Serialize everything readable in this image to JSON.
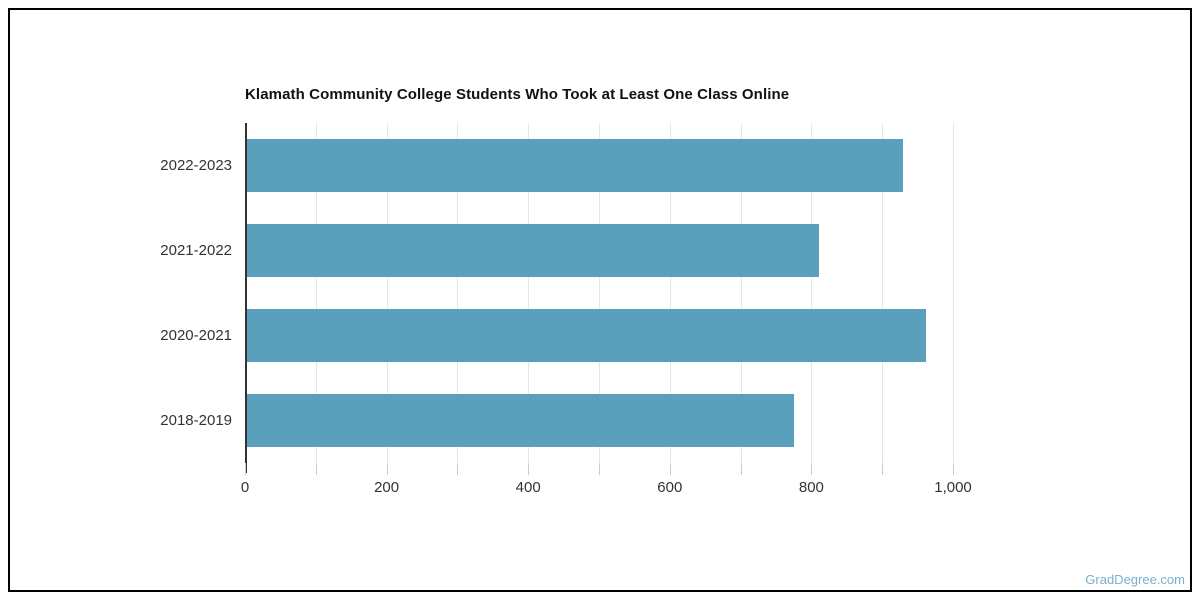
{
  "watermark": {
    "label": "GradDegree.com",
    "color": "#7aafcd"
  },
  "colors": {
    "bar": "#5a9fbc",
    "axis_line": "#333333",
    "gridline": "#e6e6e6",
    "tick": "#cccccc",
    "label_text": "#333333",
    "title_text": "#111111",
    "frame_border": "#000000"
  },
  "chart_data": {
    "type": "bar",
    "orientation": "horizontal",
    "title": "Klamath Community College Students Who Took at Least One Class Online",
    "categories": [
      "2022-2023",
      "2021-2022",
      "2020-2021",
      "2018-2019"
    ],
    "values": [
      927,
      808,
      959,
      773
    ],
    "xlabel": "",
    "ylabel": "",
    "xlim": [
      0,
      1000
    ],
    "grid": true,
    "legend": false,
    "x_ticks": [
      0,
      100,
      200,
      300,
      400,
      500,
      600,
      700,
      800,
      900,
      1000
    ],
    "x_tick_labels": [
      "0",
      "200",
      "400",
      "600",
      "800",
      "1,000"
    ],
    "x_tick_label_values": [
      0,
      200,
      400,
      600,
      800,
      1000
    ]
  }
}
